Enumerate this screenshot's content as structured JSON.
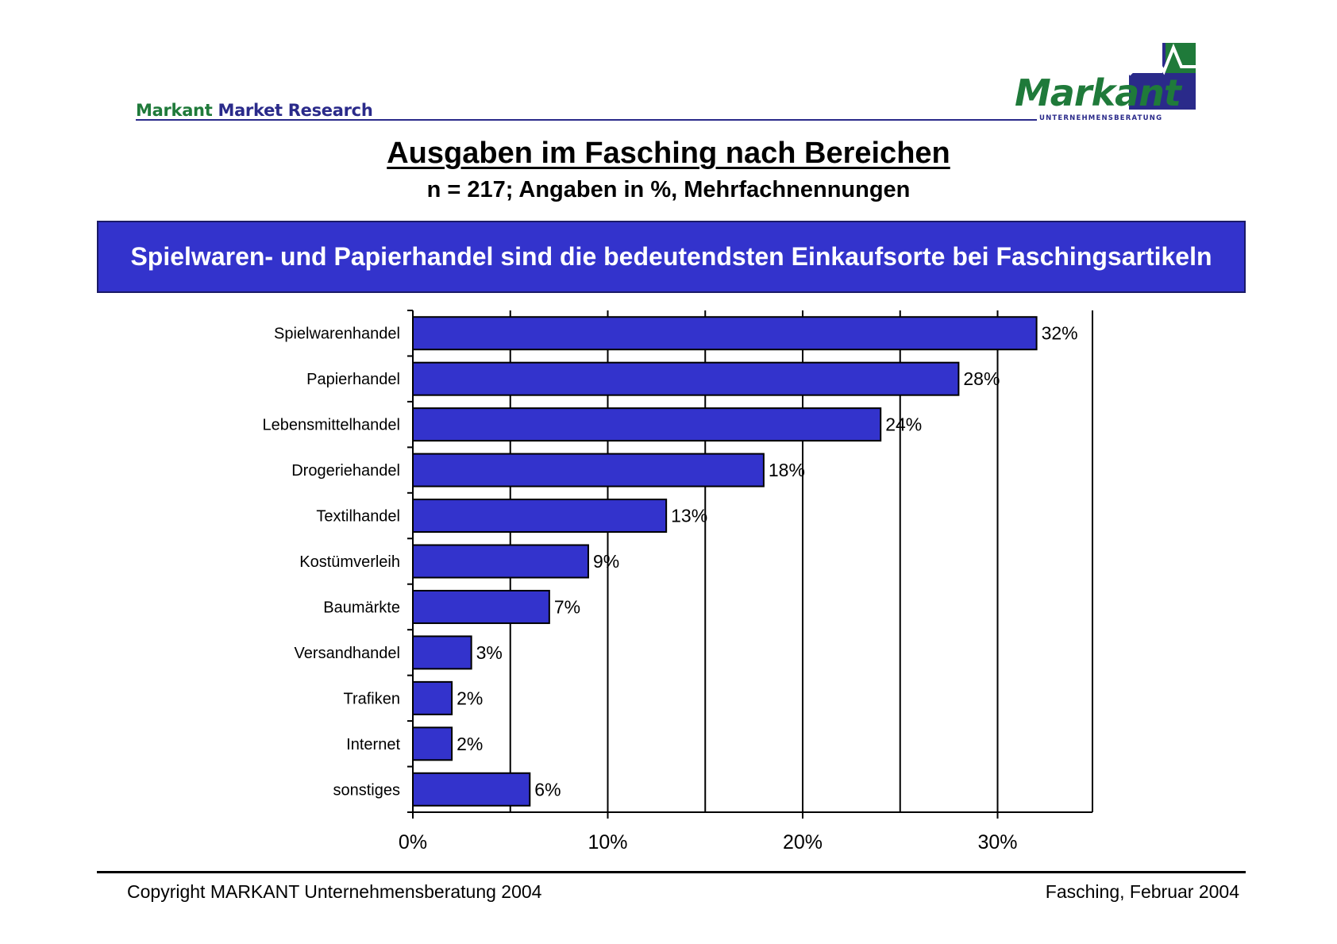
{
  "header": {
    "brand_markant": "Markant",
    "brand_rest": "Market Research",
    "logo_word": "Markant",
    "logo_sub": "UNTERNEHMENSBERATUNG"
  },
  "title": "Ausgaben im Fasching nach Bereichen",
  "subtitle": "n = 217; Angaben in %, Mehrfachnennungen",
  "banner": "Spielwaren- und Papierhandel sind die bedeutendsten Einkaufsorte bei Faschingsartikeln",
  "chart_data": {
    "type": "bar",
    "orientation": "horizontal",
    "categories": [
      "Spielwarenhandel",
      "Papierhandel",
      "Lebensmittelhandel",
      "Drogeriehandel",
      "Textilhandel",
      "Kostümverleih",
      "Baumärkte",
      "Versandhandel",
      "Trafiken",
      "Internet",
      "sonstiges"
    ],
    "values": [
      32,
      28,
      24,
      18,
      13,
      9,
      7,
      3,
      2,
      2,
      6
    ],
    "data_labels": [
      "32%",
      "28%",
      "24%",
      "18%",
      "13%",
      "9%",
      "7%",
      "3%",
      "2%",
      "2%",
      "6%"
    ],
    "xlim": [
      0,
      35
    ],
    "xticks": [
      0,
      10,
      20,
      30
    ],
    "xtick_labels": [
      "0%",
      "10%",
      "20%",
      "30%"
    ],
    "gridlines": [
      5,
      10,
      15,
      20,
      25,
      30
    ],
    "grid": true,
    "colors": {
      "bar": "#3333cc",
      "bar_edge": "#000000"
    }
  },
  "footer": {
    "copyright": "Copyright MARKANT Unternehmensberatung 2004",
    "date": "Fasching,  Februar 2004"
  },
  "colors": {
    "accent_blue": "#3333cc",
    "brand_green": "#1f7a3a",
    "brand_navy": "#2a2a8a"
  }
}
